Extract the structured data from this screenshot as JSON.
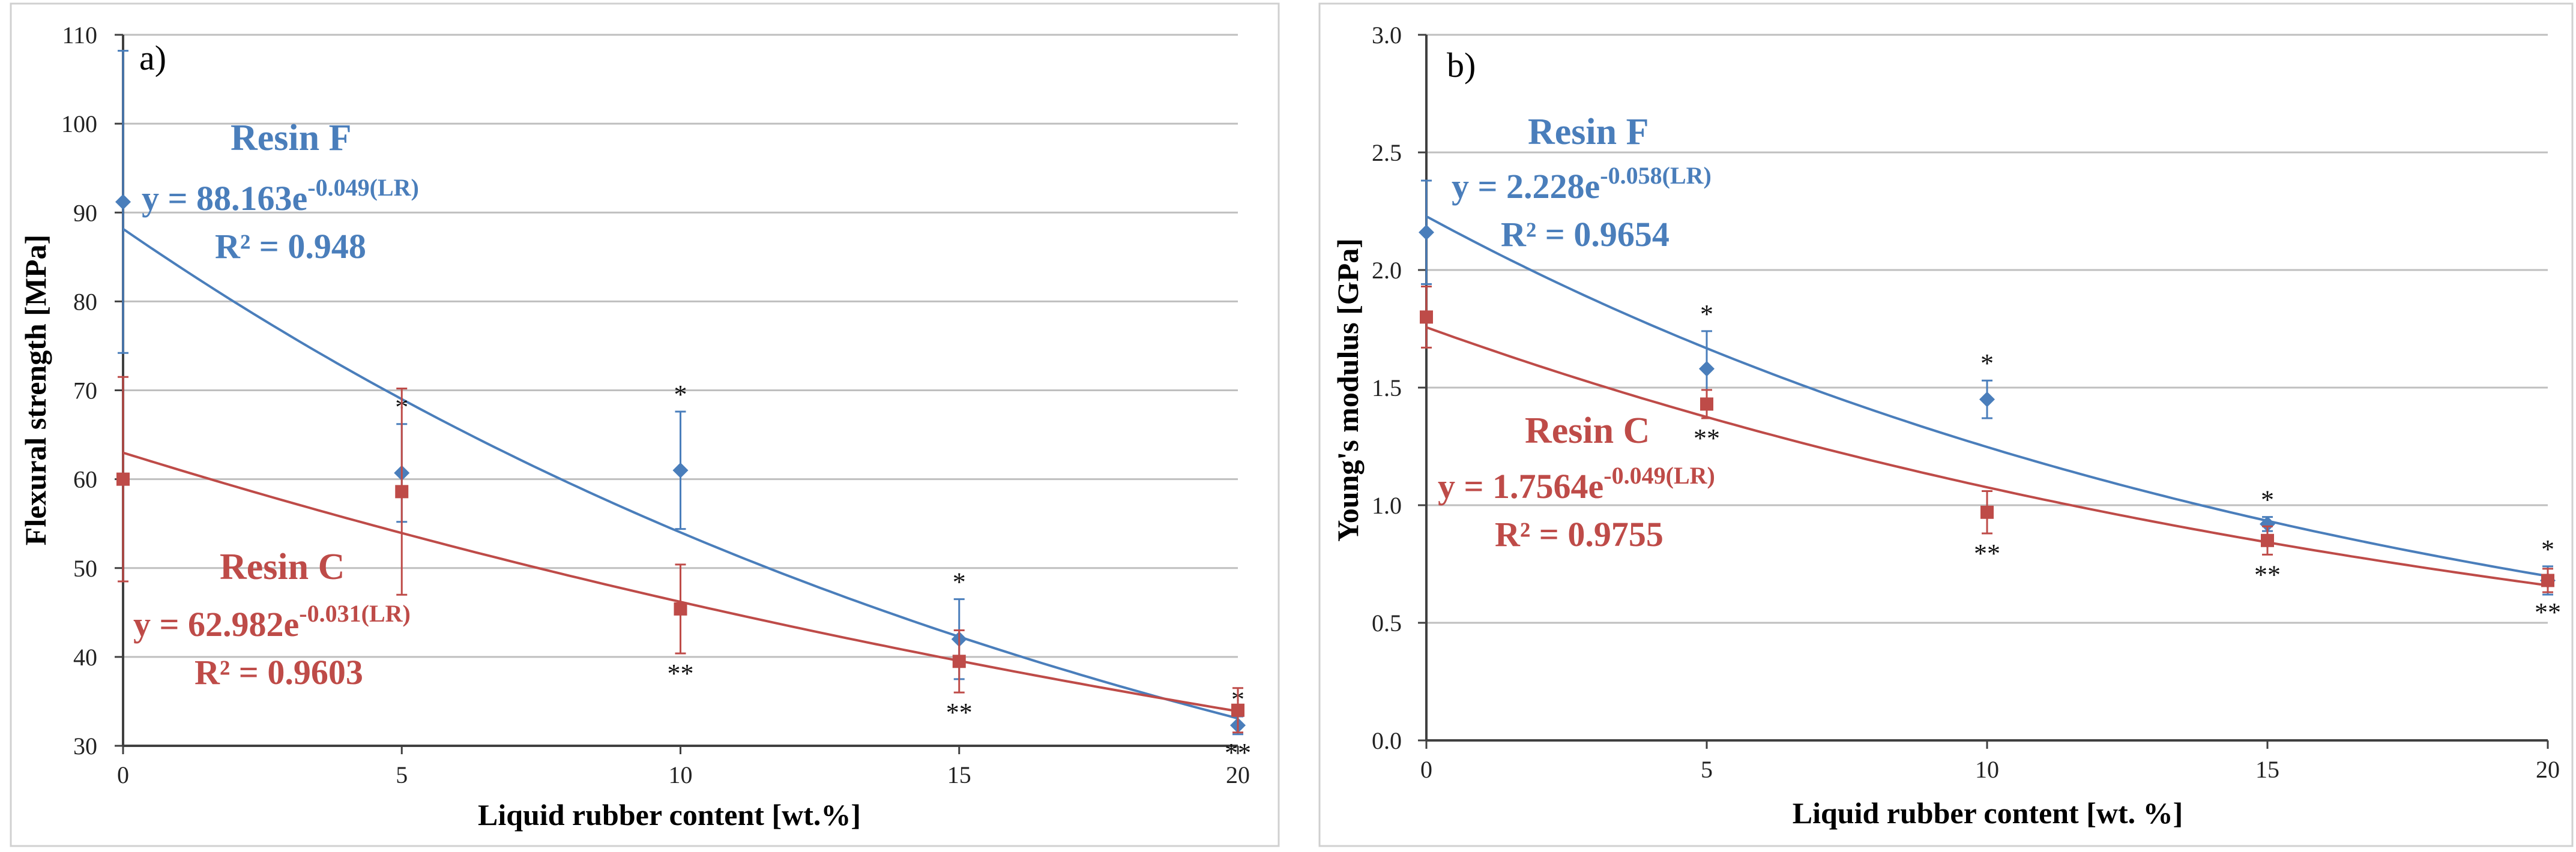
{
  "colors": {
    "resin_f": "#4a7ebb",
    "resin_c": "#be4b48",
    "grid": "#bfbfbf",
    "axis": "#404040"
  },
  "chart_data": [
    {
      "type": "scatter",
      "panel_label": "a)",
      "xlabel": "Liquid rubber content [wt.%]",
      "ylabel": "Flexural strength [MPa]",
      "xlim": [
        0,
        20
      ],
      "ylim": [
        30,
        110
      ],
      "xticks": [
        0,
        5,
        10,
        15,
        20
      ],
      "yticks": [
        30,
        40,
        50,
        60,
        70,
        80,
        90,
        100,
        110
      ],
      "x_tick_labels": [
        "0",
        "5",
        "10",
        "15",
        "20"
      ],
      "y_tick_labels": [
        "30",
        "40",
        "50",
        "60",
        "70",
        "80",
        "90",
        "100",
        "110"
      ],
      "grid": true,
      "series": [
        {
          "name": "Resin F",
          "marker": "diamond",
          "x": [
            0,
            5,
            10,
            15,
            20
          ],
          "y": [
            91.2,
            60.7,
            61.0,
            42.0,
            32.3
          ],
          "err": [
            17.0,
            5.5,
            6.6,
            4.5,
            1.0
          ],
          "marks": [
            "",
            "*",
            "*",
            "*",
            "*"
          ],
          "fit": {
            "a": 88.163,
            "b": -0.049
          },
          "equation_prefix": "y = 88.163e",
          "equation_exponent": "-0.049(LR)",
          "r2": "R² = 0.948"
        },
        {
          "name": "Resin C",
          "marker": "square",
          "x": [
            0,
            5,
            10,
            15,
            20
          ],
          "y": [
            60.0,
            58.6,
            45.4,
            39.5,
            34.0
          ],
          "err": [
            11.5,
            11.6,
            5.0,
            3.5,
            2.5
          ],
          "marks": [
            "",
            "",
            "**",
            "**",
            "**"
          ],
          "fit": {
            "a": 62.982,
            "b": -0.031
          },
          "equation_prefix": "y = 62.982e",
          "equation_exponent": "-0.031(LR)",
          "r2": "R² = 0.9603"
        }
      ]
    },
    {
      "type": "scatter",
      "panel_label": "b)",
      "xlabel": "Liquid rubber content [wt. %]",
      "ylabel": "Young's modulus [GPa]",
      "xlim": [
        0,
        20
      ],
      "ylim": [
        0.0,
        3.0
      ],
      "xticks": [
        0,
        5,
        10,
        15,
        20
      ],
      "yticks": [
        0.0,
        0.5,
        1.0,
        1.5,
        2.0,
        2.5,
        3.0
      ],
      "x_tick_labels": [
        "0",
        "5",
        "10",
        "15",
        "20"
      ],
      "y_tick_labels": [
        "0.0",
        "0.5",
        "1.0",
        "1.5",
        "2.0",
        "2.5",
        "3.0"
      ],
      "grid": true,
      "series": [
        {
          "name": "Resin F",
          "marker": "diamond",
          "x": [
            0,
            5,
            10,
            15,
            20
          ],
          "y": [
            2.16,
            1.58,
            1.45,
            0.92,
            0.68
          ],
          "err": [
            0.22,
            0.16,
            0.08,
            0.03,
            0.06
          ],
          "marks": [
            "",
            "*",
            "*",
            "*",
            "*"
          ],
          "fit": {
            "a": 2.228,
            "b": -0.058
          },
          "equation_prefix": "y = 2.228e",
          "equation_exponent": "-0.058(LR)",
          "r2": "R² = 0.9654"
        },
        {
          "name": "Resin C",
          "marker": "square",
          "x": [
            0,
            5,
            10,
            15,
            20
          ],
          "y": [
            1.8,
            1.43,
            0.97,
            0.85,
            0.68
          ],
          "err": [
            0.13,
            0.06,
            0.09,
            0.06,
            0.05
          ],
          "marks": [
            "",
            "**",
            "**",
            "**",
            "**"
          ],
          "fit": {
            "a": 1.7564,
            "b": -0.049
          },
          "equation_prefix": "y = 1.7564e",
          "equation_exponent": "-0.049(LR)",
          "r2": "R² = 0.9755"
        }
      ]
    }
  ]
}
